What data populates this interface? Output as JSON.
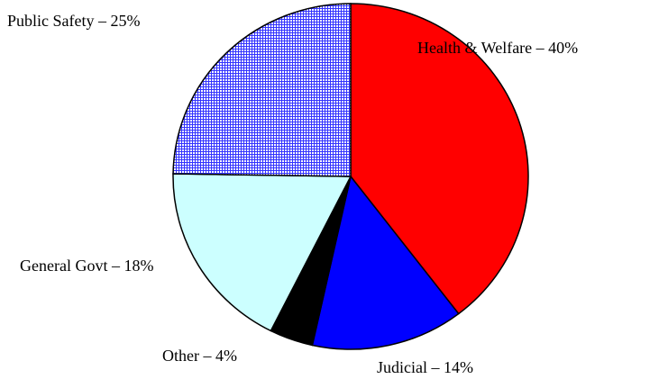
{
  "chart_data": {
    "type": "pie",
    "values": [
      40,
      14,
      4,
      18,
      25
    ],
    "value_labels": [
      "Health & Welfare – 40%",
      "Judicial – 14%",
      "Other – 4%",
      "General Govt – 18%",
      "Public Safety – 25%"
    ],
    "colors": [
      "#ff0000",
      "#0000ff",
      "#000000",
      "#ccffff",
      "#0000ff"
    ],
    "patterns": [
      null,
      null,
      null,
      null,
      "grid"
    ]
  }
}
